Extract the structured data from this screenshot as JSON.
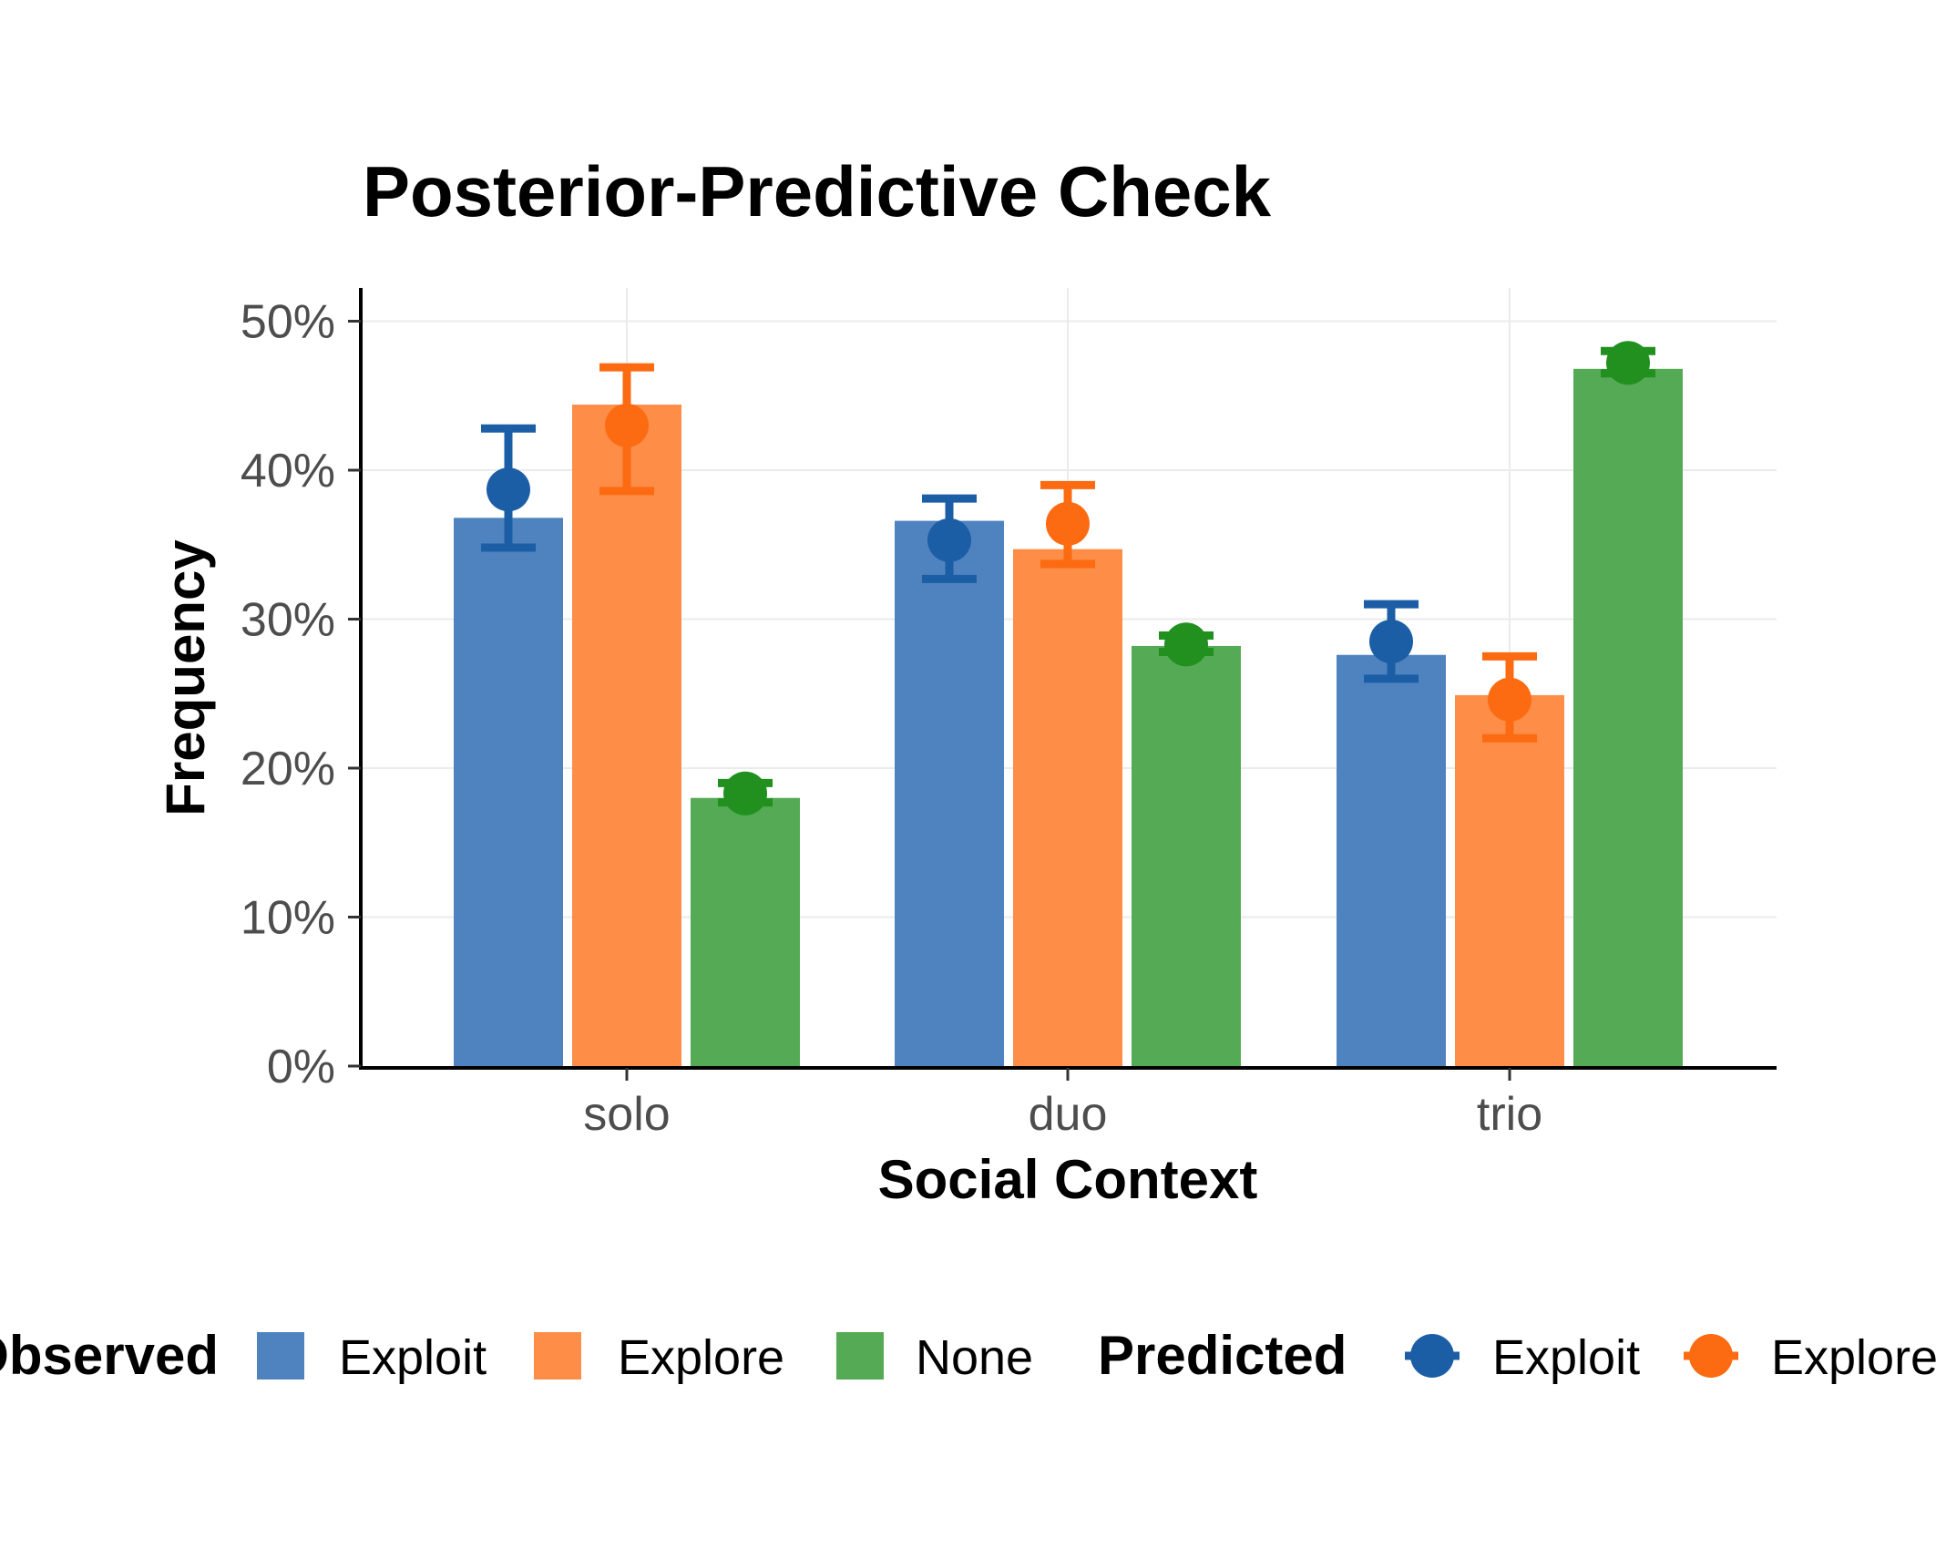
{
  "chart_data": {
    "type": "bar",
    "title": "Posterior-Predictive Check",
    "xlabel": "Social Context",
    "ylabel": "Frequency",
    "categories": [
      "solo",
      "duo",
      "trio"
    ],
    "y_ticks": [
      "0%",
      "10%",
      "20%",
      "30%",
      "40%",
      "50%"
    ],
    "ylim": [
      0,
      0.52
    ],
    "grid": true,
    "legend_position": "bottom",
    "observed": {
      "legend_title": "Observed",
      "series": [
        {
          "name": "Exploit",
          "color": "#4f83bf",
          "values": [
            0.368,
            0.366,
            0.276
          ]
        },
        {
          "name": "Explore",
          "color": "#fd8d47",
          "values": [
            0.444,
            0.347,
            0.249
          ]
        },
        {
          "name": "None",
          "color": "#55aa55",
          "values": [
            0.18,
            0.282,
            0.468
          ]
        }
      ]
    },
    "predicted": {
      "legend_title": "Predicted",
      "series": [
        {
          "name": "Exploit",
          "color": "#1c5ea5",
          "mean": [
            0.387,
            0.353,
            0.285
          ],
          "lower": [
            0.348,
            0.327,
            0.26
          ],
          "upper": [
            0.428,
            0.381,
            0.31
          ]
        },
        {
          "name": "Explore",
          "color": "#fc6b12",
          "mean": [
            0.43,
            0.364,
            0.246
          ],
          "lower": [
            0.386,
            0.337,
            0.22
          ],
          "upper": [
            0.469,
            0.39,
            0.275
          ]
        },
        {
          "name": "None",
          "color": "#21901f",
          "mean": [
            0.183,
            0.283,
            0.472
          ],
          "lower": [
            0.177,
            0.278,
            0.465
          ],
          "upper": [
            0.19,
            0.289,
            0.48
          ]
        }
      ]
    }
  }
}
